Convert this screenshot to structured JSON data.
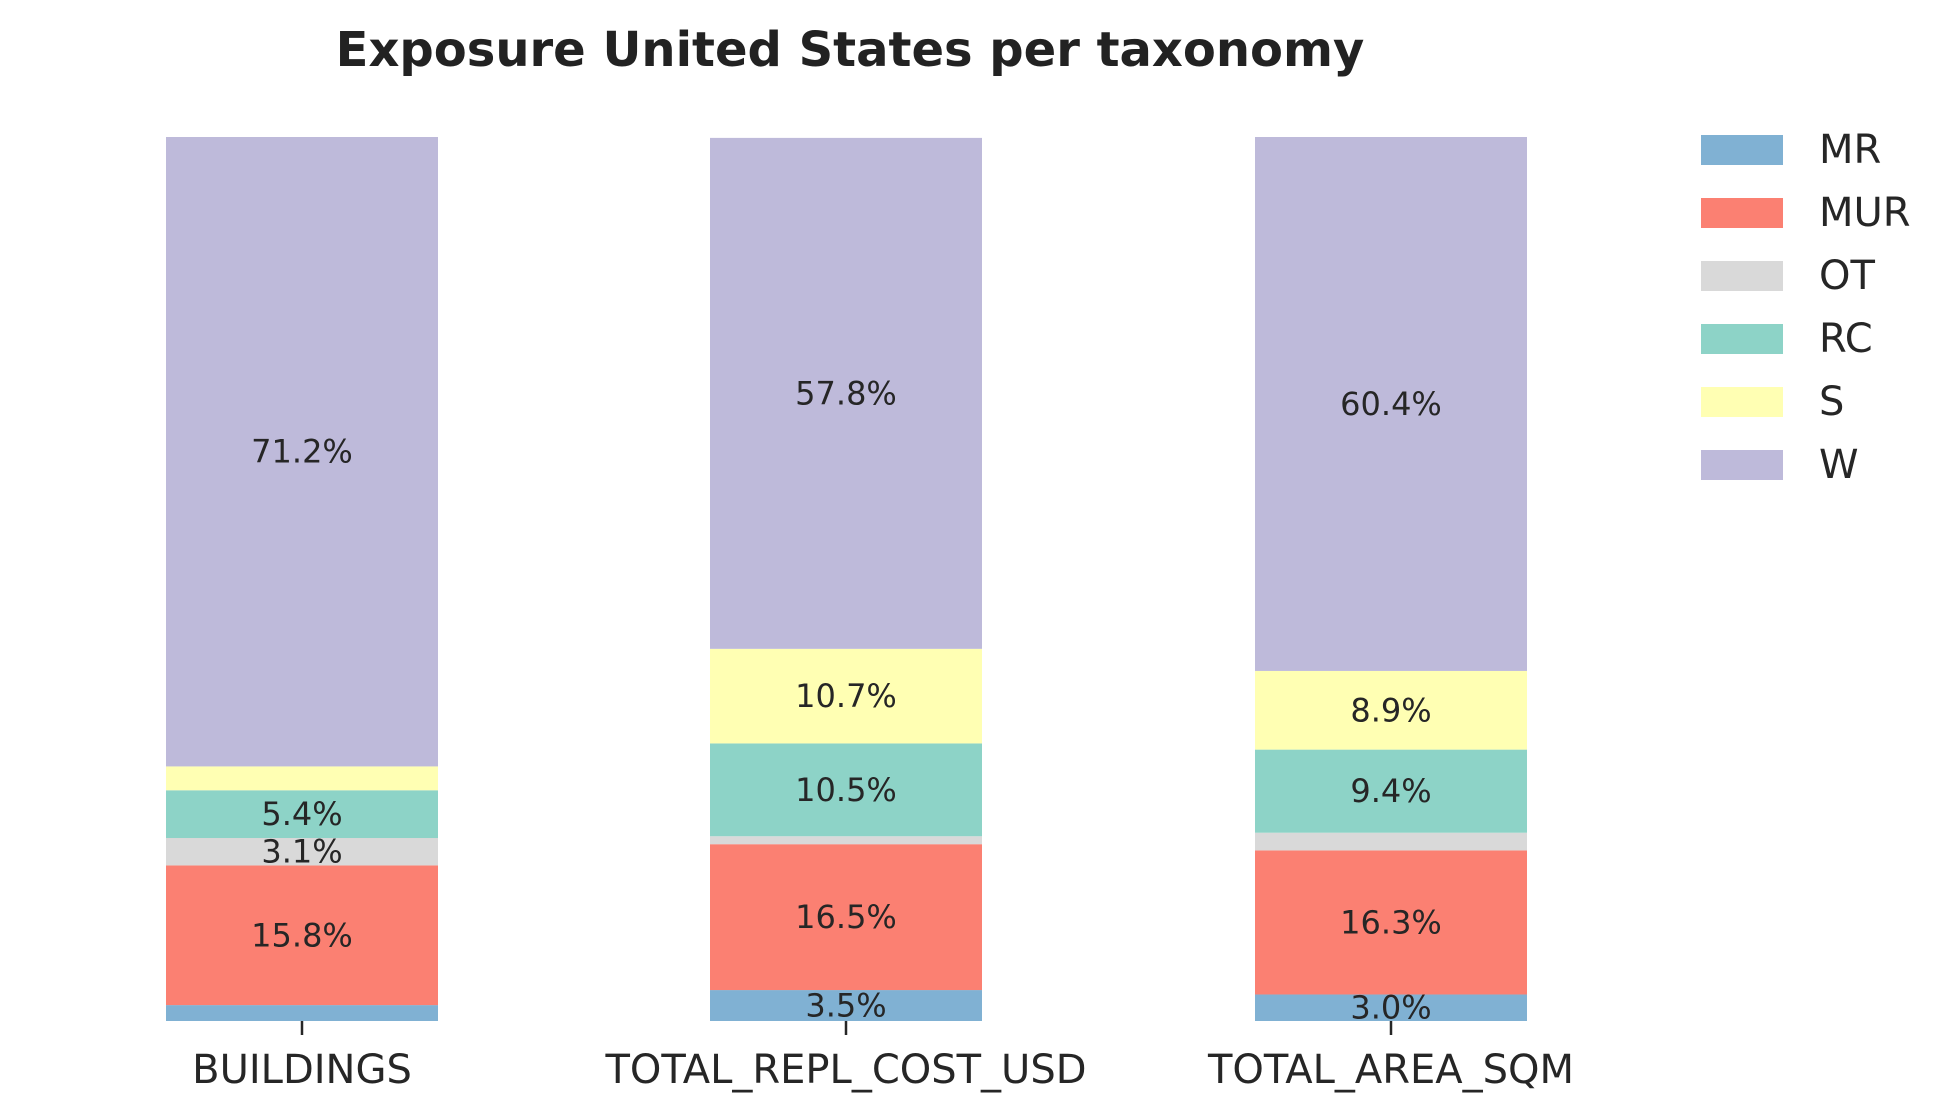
{
  "chart_data": {
    "type": "bar",
    "stacked": true,
    "normalized": true,
    "title": "Exposure United States per taxonomy",
    "categories": [
      "BUILDINGS",
      "TOTAL_REPL_COST_USD",
      "TOTAL_AREA_SQM"
    ],
    "series": [
      {
        "name": "MR",
        "color": "#80b1d3",
        "values": [
          1.8,
          3.5,
          3.0
        ]
      },
      {
        "name": "MUR",
        "color": "#fb8072",
        "values": [
          15.8,
          16.5,
          16.3
        ]
      },
      {
        "name": "OT",
        "color": "#d9d9d9",
        "values": [
          3.1,
          0.9,
          2.0
        ]
      },
      {
        "name": "RC",
        "color": "#8dd3c7",
        "values": [
          5.4,
          10.5,
          9.4
        ]
      },
      {
        "name": "S",
        "color": "#ffffb3",
        "values": [
          2.7,
          10.7,
          8.9
        ]
      },
      {
        "name": "W",
        "color": "#bebada",
        "values": [
          71.2,
          57.8,
          60.4
        ]
      }
    ],
    "data_labels": [
      [
        "",
        "15.8%",
        "3.1%",
        "5.4%",
        "",
        "71.2%"
      ],
      [
        "3.5%",
        "16.5%",
        "",
        "10.5%",
        "10.7%",
        "57.8%"
      ],
      [
        "3.0%",
        "16.3%",
        "",
        "9.4%",
        "8.9%",
        "60.4%"
      ]
    ],
    "ylim": [
      0,
      100
    ],
    "xlabel": "",
    "ylabel": "",
    "grid": false,
    "legend": "right"
  }
}
